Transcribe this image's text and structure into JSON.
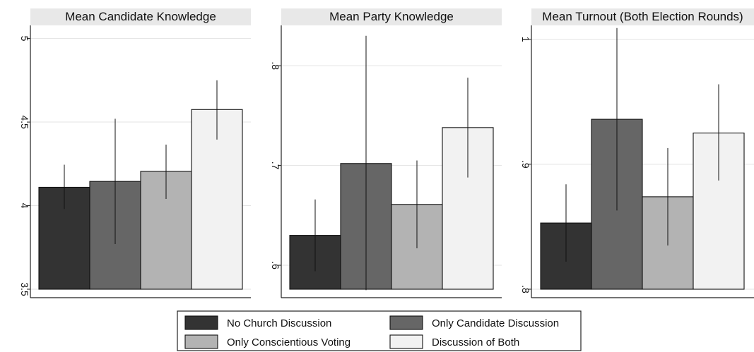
{
  "chart_data": [
    {
      "type": "bar",
      "title": "Mean Candidate Knowledge",
      "categories": [
        "No Church Discussion",
        "Only Candidate Discussion",
        "Only Conscientious Voting",
        "Discussion of Both"
      ],
      "values": [
        4.11,
        4.145,
        4.205,
        4.575
      ],
      "ci_low": [
        3.98,
        3.77,
        4.04,
        4.395
      ],
      "ci_high": [
        4.245,
        4.52,
        4.365,
        4.75
      ],
      "ylim": [
        3.5,
        5.07
      ],
      "yticks": [
        3.5,
        4,
        4.5,
        5
      ],
      "ytick_labels": [
        "3.5",
        "4",
        "4.5",
        "5"
      ],
      "grid": true
    },
    {
      "type": "bar",
      "title": "Mean Party Knowledge",
      "categories": [
        "No Church Discussion",
        "Only Candidate Discussion",
        "Only Conscientious Voting",
        "Discussion of Both"
      ],
      "values": [
        0.63,
        0.702,
        0.661,
        0.738
      ],
      "ci_low": [
        0.594,
        0.575,
        0.617,
        0.688
      ],
      "ci_high": [
        0.666,
        0.83,
        0.705,
        0.788
      ],
      "ylim": [
        0.576,
        0.839
      ],
      "yticks": [
        0.6,
        0.7,
        0.8
      ],
      "ytick_labels": [
        ".6",
        ".7",
        ".8"
      ],
      "grid": true
    },
    {
      "type": "bar",
      "title": "Mean Turnout (Both Election Rounds)",
      "categories": [
        "No Church Discussion",
        "Only Candidate Discussion",
        "Only Conscientious Voting",
        "Discussion of Both"
      ],
      "values": [
        0.853,
        0.936,
        0.874,
        0.925
      ],
      "ci_low": [
        0.822,
        0.863,
        0.835,
        0.887
      ],
      "ci_high": [
        0.884,
        1.009,
        0.913,
        0.964
      ],
      "ylim": [
        0.8,
        1.01
      ],
      "yticks": [
        0.8,
        0.9,
        1
      ],
      "ytick_labels": [
        ".8",
        ".9",
        "1"
      ],
      "grid": true
    }
  ],
  "legend": {
    "placement": "bottom",
    "items": [
      {
        "label": "No Church Discussion",
        "color": "#333333"
      },
      {
        "label": "Only Candidate Discussion",
        "color": "#666666"
      },
      {
        "label": "Only Conscientious Voting",
        "color": "#b3b3b3"
      },
      {
        "label": "Discussion of Both",
        "color": "#f2f2f2"
      }
    ]
  }
}
